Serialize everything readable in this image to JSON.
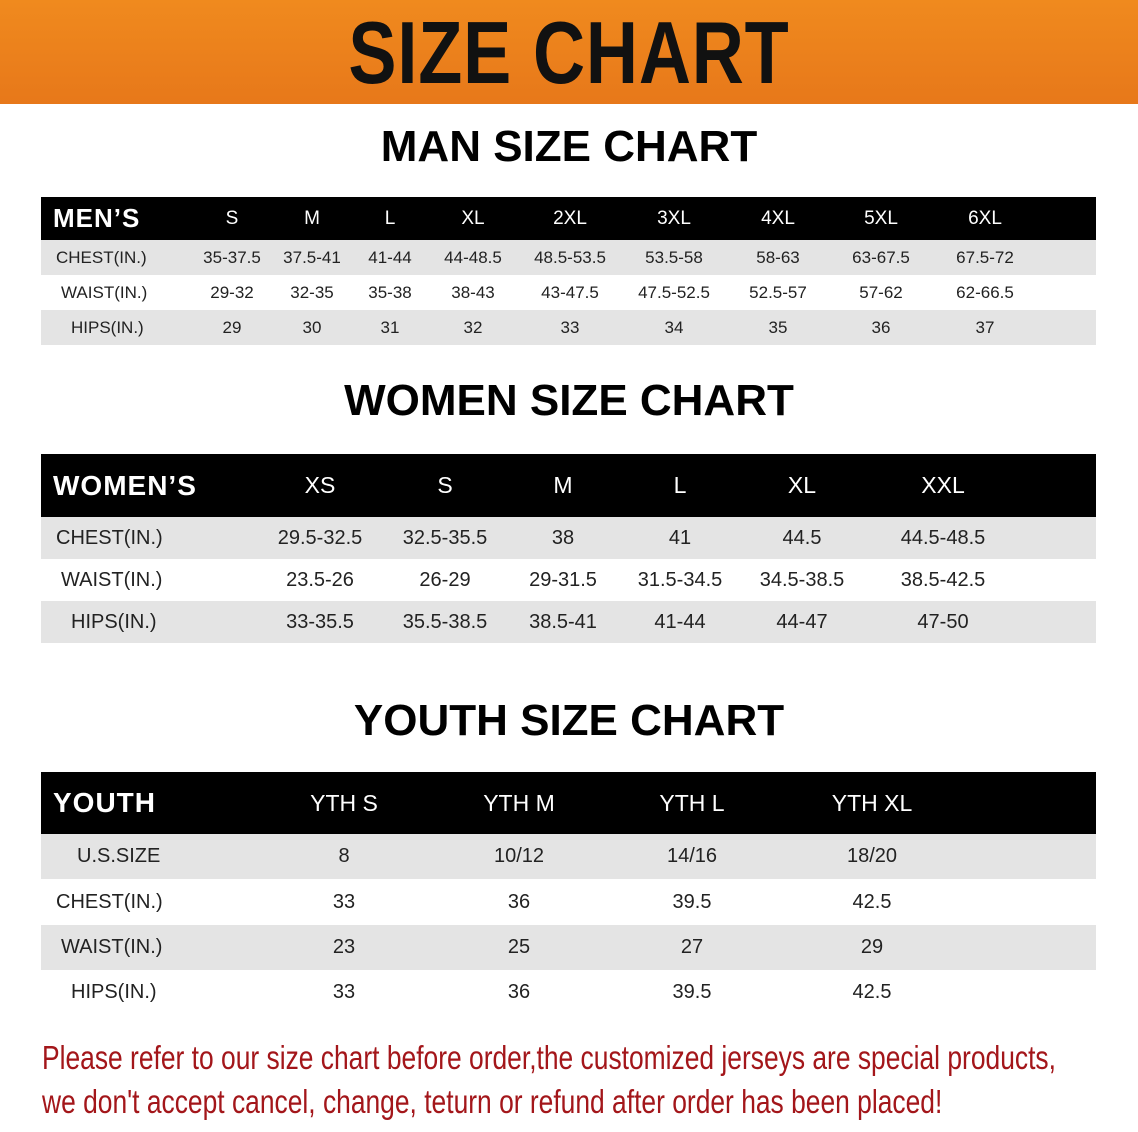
{
  "banner_title": "SIZE CHART",
  "accent_color": "#e97f1c",
  "note_color": "#a3161a",
  "men": {
    "title": "MAN SIZE CHART",
    "header_label": "MEN’S",
    "sizes": [
      "S",
      "M",
      "L",
      "XL",
      "2XL",
      "3XL",
      "4XL",
      "5XL",
      "6XL"
    ],
    "rows": [
      {
        "label": "CHEST(IN.)",
        "values": [
          "35-37.5",
          "37.5-41",
          "41-44",
          "44-48.5",
          "48.5-53.5",
          "53.5-58",
          "58-63",
          "63-67.5",
          "67.5-72"
        ]
      },
      {
        "label": "WAIST(IN.)",
        "values": [
          "29-32",
          "32-35",
          "35-38",
          "38-43",
          "43-47.5",
          "47.5-52.5",
          "52.5-57",
          "57-62",
          "62-66.5"
        ]
      },
      {
        "label": "HIPS(IN.)",
        "values": [
          "29",
          "30",
          "31",
          "32",
          "33",
          "34",
          "35",
          "36",
          "37"
        ]
      }
    ]
  },
  "women": {
    "title": "WOMEN SIZE CHART",
    "header_label": "WOMEN’S",
    "sizes": [
      "XS",
      "S",
      "M",
      "L",
      "XL",
      "XXL"
    ],
    "rows": [
      {
        "label": "CHEST(IN.)",
        "values": [
          "29.5-32.5",
          "32.5-35.5",
          "38",
          "41",
          "44.5",
          "44.5-48.5"
        ]
      },
      {
        "label": "WAIST(IN.)",
        "values": [
          "23.5-26",
          "26-29",
          "29-31.5",
          "31.5-34.5",
          "34.5-38.5",
          "38.5-42.5"
        ]
      },
      {
        "label": "HIPS(IN.)",
        "values": [
          "33-35.5",
          "35.5-38.5",
          "38.5-41",
          "41-44",
          "44-47",
          "47-50"
        ]
      }
    ]
  },
  "youth": {
    "title": "YOUTH SIZE CHART",
    "header_label": "YOUTH",
    "sizes": [
      "YTH S",
      "YTH M",
      "YTH L",
      "YTH XL"
    ],
    "rows": [
      {
        "label": "U.S.SIZE",
        "values": [
          "8",
          "10/12",
          "14/16",
          "18/20"
        ]
      },
      {
        "label": "CHEST(IN.)",
        "values": [
          "33",
          "36",
          "39.5",
          "42.5"
        ]
      },
      {
        "label": "WAIST(IN.)",
        "values": [
          "23",
          "25",
          "27",
          "29"
        ]
      },
      {
        "label": "HIPS(IN.)",
        "values": [
          "33",
          "36",
          "39.5",
          "42.5"
        ]
      }
    ]
  },
  "note": {
    "line1": "Please refer to our size chart before order,the customized jerseys are special products,",
    "line2": "we don't accept cancel, change, teturn or refund after order has been placed!"
  }
}
